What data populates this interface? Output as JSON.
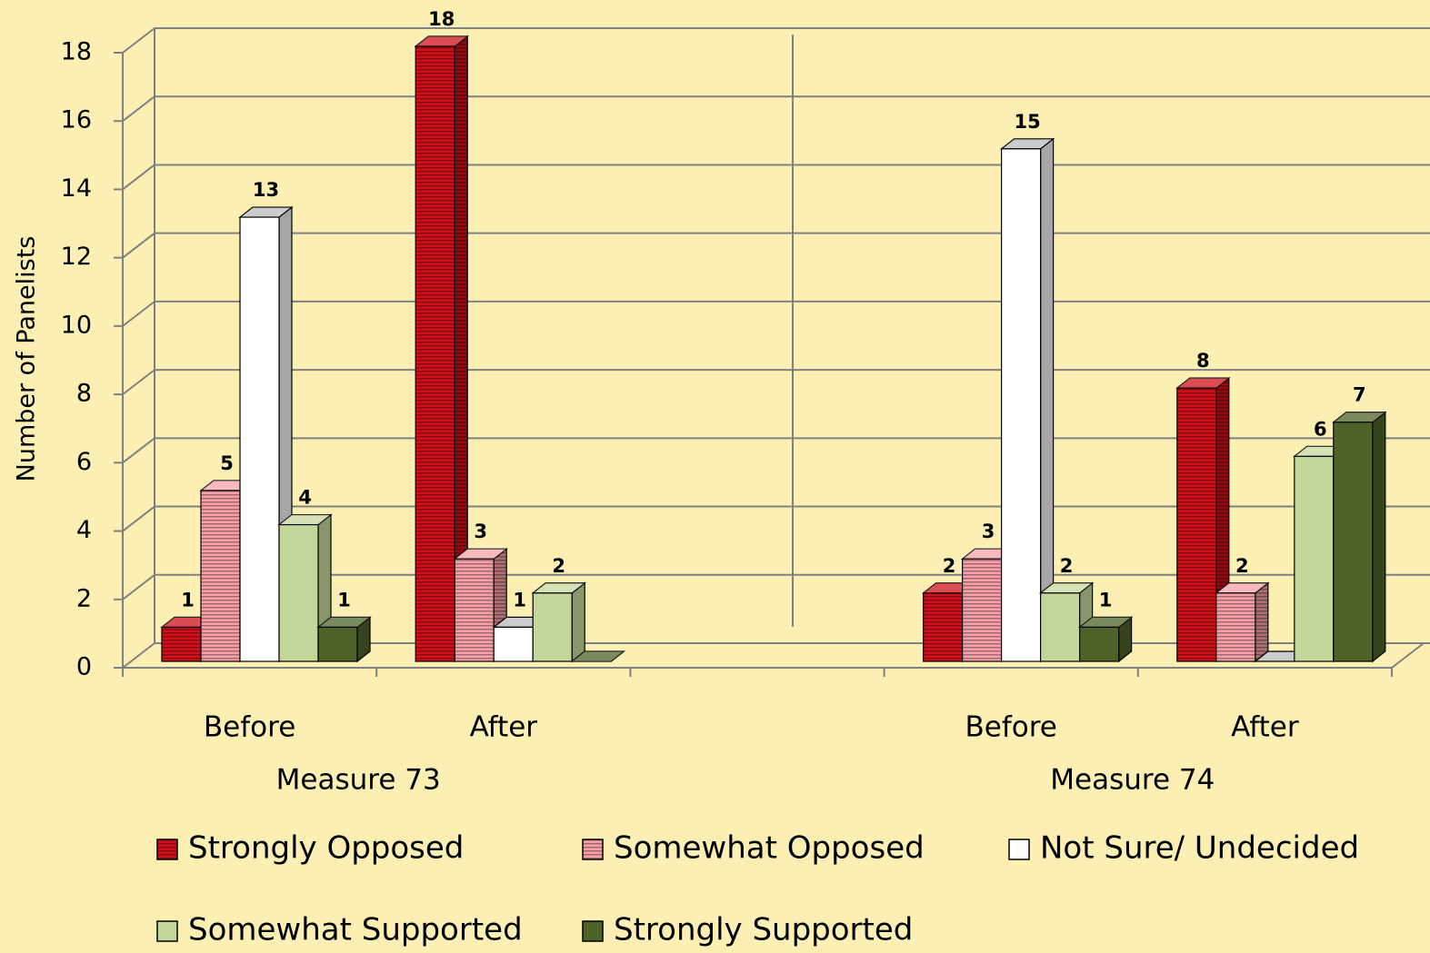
{
  "chart_data": {
    "type": "bar3d",
    "y_label": "Number of Panelists",
    "categories": [
      "Before",
      "After",
      null,
      "Before",
      "After"
    ],
    "group_labels": [
      "Measure 73",
      "Measure 74"
    ],
    "ylim": [
      0,
      18
    ],
    "yticks": [
      0,
      2,
      4,
      6,
      8,
      10,
      12,
      14,
      16,
      18
    ],
    "grid": true,
    "legend": "bottom",
    "series": [
      {
        "name": "Strongly Opposed",
        "color": "#d0101a",
        "hatch": true,
        "values": [
          1,
          18,
          null,
          2,
          8
        ],
        "value_labels": [
          1,
          18,
          null,
          2,
          8
        ]
      },
      {
        "name": "Somewhat Opposed",
        "color": "#f5a0a8",
        "hatch": true,
        "values": [
          5,
          3,
          null,
          3,
          2
        ],
        "value_labels": [
          5,
          3,
          null,
          3,
          2
        ]
      },
      {
        "name": "Not Sure/ Undecided",
        "color": "#ffffff",
        "hatch": false,
        "values": [
          13,
          1,
          null,
          15,
          0
        ],
        "value_labels": [
          13,
          1,
          null,
          15,
          null
        ]
      },
      {
        "name": "Somewhat Supported",
        "color": "#c4d79b",
        "hatch": false,
        "values": [
          4,
          2,
          null,
          2,
          6
        ],
        "value_labels": [
          4,
          2,
          null,
          2,
          6
        ]
      },
      {
        "name": "Strongly Supported",
        "color": "#4f6228",
        "hatch": false,
        "values": [
          1,
          0,
          null,
          1,
          7
        ],
        "value_labels": [
          1,
          null,
          null,
          1,
          7
        ]
      }
    ]
  }
}
